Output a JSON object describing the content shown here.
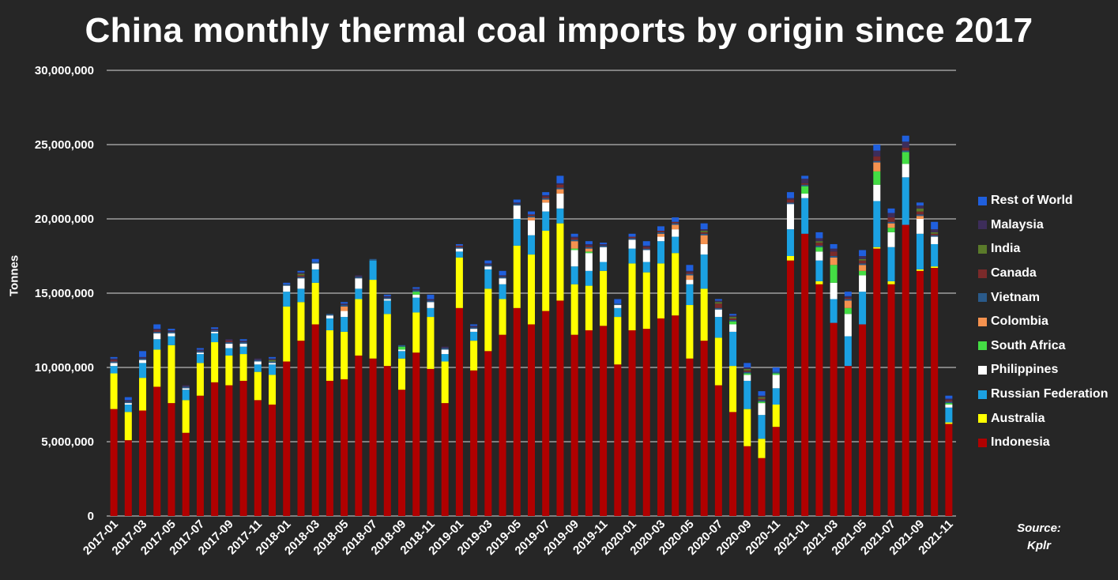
{
  "chart_data": {
    "type": "bar",
    "stacked": true,
    "title": "China monthly thermal coal imports by origin since 2017",
    "ylabel": "Tonnes",
    "xlabel": "",
    "ylim": [
      0,
      30000000
    ],
    "yticks": [
      0,
      5000000,
      10000000,
      15000000,
      20000000,
      25000000,
      30000000
    ],
    "ytick_labels": [
      "0",
      "5,000,000",
      "10,000,000",
      "15,000,000",
      "20,000,000",
      "25,000,000",
      "30,000,000"
    ],
    "grid": true,
    "legend_position": "right",
    "categories": [
      "2017-01",
      "2017-02",
      "2017-03",
      "2017-04",
      "2017-05",
      "2017-06",
      "2017-07",
      "2017-08",
      "2017-09",
      "2017-10",
      "2017-11",
      "2017-12",
      "2018-01",
      "2018-02",
      "2018-03",
      "2018-04",
      "2018-05",
      "2018-06",
      "2018-07",
      "2018-08",
      "2018-09",
      "2018-10",
      "2018-11",
      "2018-12",
      "2019-01",
      "2019-02",
      "2019-03",
      "2019-04",
      "2019-05",
      "2019-06",
      "2019-07",
      "2019-08",
      "2019-09",
      "2019-10",
      "2019-11",
      "2019-12",
      "2020-01",
      "2020-02",
      "2020-03",
      "2020-04",
      "2020-05",
      "2020-06",
      "2020-07",
      "2020-08",
      "2020-09",
      "2020-10",
      "2020-11",
      "2020-12",
      "2021-01",
      "2021-02",
      "2021-03",
      "2021-04",
      "2021-05",
      "2021-06",
      "2021-07",
      "2021-08",
      "2021-09",
      "2021-10",
      "2021-11"
    ],
    "x_tick_labels": [
      "2017-01",
      "2017-03",
      "2017-05",
      "2017-07",
      "2017-09",
      "2017-11",
      "2018-01",
      "2018-03",
      "2018-05",
      "2018-07",
      "2018-09",
      "2018-11",
      "2019-01",
      "2019-03",
      "2019-05",
      "2019-07",
      "2019-09",
      "2019-11",
      "2020-01",
      "2020-03",
      "2020-05",
      "2020-07",
      "2020-09",
      "2020-11",
      "2021-01",
      "2021-03",
      "2021-05",
      "2021-07",
      "2021-09",
      "2021-11"
    ],
    "series": [
      {
        "name": "Indonesia",
        "color": "#b00000",
        "values": [
          7200000,
          5100000,
          7100000,
          8700000,
          7600000,
          5600000,
          8100000,
          9000000,
          8800000,
          9100000,
          7800000,
          7500000,
          10400000,
          11800000,
          12900000,
          9100000,
          9200000,
          10800000,
          10600000,
          10100000,
          8500000,
          11000000,
          9900000,
          7600000,
          14000000,
          9800000,
          11100000,
          12200000,
          14000000,
          12900000,
          13800000,
          14500000,
          12200000,
          12500000,
          12800000,
          10200000,
          12500000,
          12600000,
          13300000,
          13500000,
          10600000,
          11800000,
          8800000,
          7000000,
          4700000,
          3900000,
          6000000,
          17200000,
          19000000,
          15600000,
          13000000,
          10100000,
          12900000,
          18000000,
          15600000,
          19600000,
          16500000,
          16700000,
          6200000
        ]
      },
      {
        "name": "Australia",
        "color": "#ffff00",
        "values": [
          2400000,
          1900000,
          2200000,
          2500000,
          3900000,
          2200000,
          2200000,
          2700000,
          2000000,
          1800000,
          1900000,
          2000000,
          3700000,
          2600000,
          2800000,
          3400000,
          3200000,
          3800000,
          5300000,
          3500000,
          2100000,
          2700000,
          3500000,
          2800000,
          3400000,
          2000000,
          4200000,
          2400000,
          4200000,
          4700000,
          5400000,
          5200000,
          3400000,
          3000000,
          3700000,
          3200000,
          4500000,
          3800000,
          3700000,
          4200000,
          3600000,
          3500000,
          3200000,
          3100000,
          2500000,
          1300000,
          1500000,
          300000,
          0,
          200000,
          0,
          0,
          0,
          100000,
          200000,
          0,
          100000,
          100000,
          100000
        ]
      },
      {
        "name": "Russian Federation",
        "color": "#1ba1e2",
        "values": [
          500000,
          500000,
          1000000,
          700000,
          600000,
          700000,
          600000,
          600000,
          500000,
          500000,
          500000,
          700000,
          1000000,
          900000,
          900000,
          800000,
          1000000,
          700000,
          1300000,
          900000,
          500000,
          1000000,
          600000,
          500000,
          400000,
          600000,
          1300000,
          1000000,
          1800000,
          1300000,
          1300000,
          1000000,
          1200000,
          1000000,
          600000,
          600000,
          1000000,
          700000,
          1500000,
          1100000,
          1400000,
          2300000,
          1400000,
          2300000,
          1900000,
          1600000,
          1100000,
          1800000,
          2400000,
          1400000,
          1600000,
          2000000,
          2200000,
          3100000,
          2300000,
          3200000,
          2400000,
          1500000,
          1000000
        ]
      },
      {
        "name": "Philippines",
        "color": "#ffffff",
        "values": [
          200000,
          100000,
          200000,
          400000,
          200000,
          100000,
          100000,
          100000,
          300000,
          200000,
          200000,
          100000,
          400000,
          700000,
          400000,
          200000,
          400000,
          700000,
          0,
          100000,
          100000,
          200000,
          400000,
          300000,
          200000,
          200000,
          200000,
          400000,
          900000,
          1000000,
          600000,
          1000000,
          1100000,
          1200000,
          1000000,
          200000,
          600000,
          800000,
          300000,
          500000,
          300000,
          700000,
          500000,
          500000,
          400000,
          800000,
          900000,
          1700000,
          300000,
          600000,
          1100000,
          1500000,
          1100000,
          1100000,
          1000000,
          900000,
          1000000,
          500000,
          200000
        ]
      },
      {
        "name": "South Africa",
        "color": "#44dd44",
        "values": [
          0,
          0,
          0,
          0,
          0,
          0,
          0,
          0,
          0,
          0,
          0,
          0,
          0,
          0,
          0,
          0,
          0,
          0,
          0,
          0,
          200000,
          200000,
          0,
          0,
          0,
          0,
          0,
          0,
          0,
          0,
          0,
          0,
          100000,
          100000,
          0,
          0,
          0,
          0,
          0,
          0,
          0,
          0,
          0,
          200000,
          100000,
          100000,
          100000,
          0,
          500000,
          300000,
          1200000,
          400000,
          300000,
          900000,
          300000,
          800000,
          0,
          0,
          100000
        ]
      },
      {
        "name": "Colombia",
        "color": "#f5924f",
        "values": [
          0,
          0,
          0,
          0,
          0,
          0,
          0,
          0,
          0,
          0,
          0,
          0,
          0,
          0,
          0,
          0,
          300000,
          0,
          0,
          0,
          0,
          0,
          0,
          0,
          0,
          0,
          0,
          0,
          0,
          200000,
          200000,
          300000,
          500000,
          200000,
          0,
          0,
          0,
          0,
          200000,
          300000,
          300000,
          600000,
          0,
          0,
          0,
          0,
          0,
          0,
          0,
          0,
          500000,
          500000,
          400000,
          600000,
          300000,
          0,
          200000,
          0,
          0
        ]
      },
      {
        "name": "Vietnam",
        "color": "#2a5a8a",
        "values": [
          100000,
          100000,
          100000,
          100000,
          100000,
          100000,
          100000,
          100000,
          100000,
          100000,
          100000,
          100000,
          100000,
          100000,
          100000,
          100000,
          100000,
          100000,
          100000,
          100000,
          100000,
          100000,
          100000,
          100000,
          100000,
          100000,
          100000,
          100000,
          100000,
          100000,
          100000,
          100000,
          100000,
          100000,
          100000,
          100000,
          100000,
          100000,
          100000,
          100000,
          100000,
          100000,
          100000,
          100000,
          100000,
          100000,
          100000,
          100000,
          100000,
          100000,
          100000,
          100000,
          100000,
          100000,
          100000,
          100000,
          100000,
          100000,
          100000
        ]
      },
      {
        "name": "Canada",
        "color": "#7a2a2a",
        "values": [
          100000,
          0,
          0,
          100000,
          0,
          0,
          0,
          0,
          100000,
          0,
          0,
          0,
          0,
          100000,
          0,
          0,
          0,
          0,
          0,
          0,
          0,
          0,
          0,
          0,
          100000,
          0,
          0,
          0,
          0,
          100000,
          100000,
          200000,
          100000,
          100000,
          0,
          0,
          100000,
          100000,
          100000,
          100000,
          100000,
          100000,
          300000,
          100000,
          100000,
          100000,
          0,
          200000,
          100000,
          200000,
          300000,
          100000,
          200000,
          300000,
          300000,
          200000,
          200000,
          100000,
          100000
        ]
      },
      {
        "name": "India",
        "color": "#5a7a2a",
        "values": [
          0,
          0,
          0,
          0,
          0,
          0,
          0,
          0,
          0,
          0,
          0,
          100000,
          0,
          100000,
          0,
          0,
          0,
          0,
          0,
          0,
          0,
          0,
          0,
          0,
          0,
          0,
          0,
          0,
          0,
          0,
          0,
          0,
          0,
          0,
          0,
          0,
          0,
          0,
          0,
          0,
          0,
          100000,
          100000,
          100000,
          100000,
          100000,
          0,
          0,
          0,
          100000,
          0,
          0,
          100000,
          0,
          0,
          0,
          200000,
          100000,
          0
        ]
      },
      {
        "name": "Malaysia",
        "color": "#3d2d5a",
        "values": [
          100000,
          100000,
          100000,
          100000,
          100000,
          100000,
          100000,
          100000,
          100000,
          100000,
          100000,
          100000,
          0,
          100000,
          0,
          0,
          100000,
          100000,
          0,
          100000,
          0,
          100000,
          100000,
          100000,
          0,
          100000,
          100000,
          100000,
          100000,
          0,
          100000,
          100000,
          100000,
          100000,
          100000,
          0,
          0,
          100000,
          0,
          0,
          100000,
          100000,
          100000,
          100000,
          100000,
          100000,
          0,
          100000,
          300000,
          200000,
          200000,
          100000,
          200000,
          400000,
          300000,
          400000,
          200000,
          200000,
          100000
        ]
      },
      {
        "name": "Rest of World",
        "color": "#1f5fdd",
        "values": [
          100000,
          200000,
          400000,
          300000,
          100000,
          0,
          100000,
          100000,
          0,
          100000,
          0,
          100000,
          100000,
          100000,
          200000,
          0,
          100000,
          0,
          0,
          100000,
          0,
          100000,
          300000,
          0,
          100000,
          100000,
          200000,
          300000,
          200000,
          200000,
          200000,
          500000,
          200000,
          200000,
          100000,
          300000,
          200000,
          300000,
          300000,
          300000,
          400000,
          400000,
          100000,
          100000,
          300000,
          300000,
          300000,
          400000,
          200000,
          400000,
          300000,
          300000,
          400000,
          400000,
          300000,
          400000,
          200000,
          500000,
          200000
        ]
      }
    ]
  },
  "source": {
    "line1": "Source:",
    "line2": "Kplr"
  }
}
